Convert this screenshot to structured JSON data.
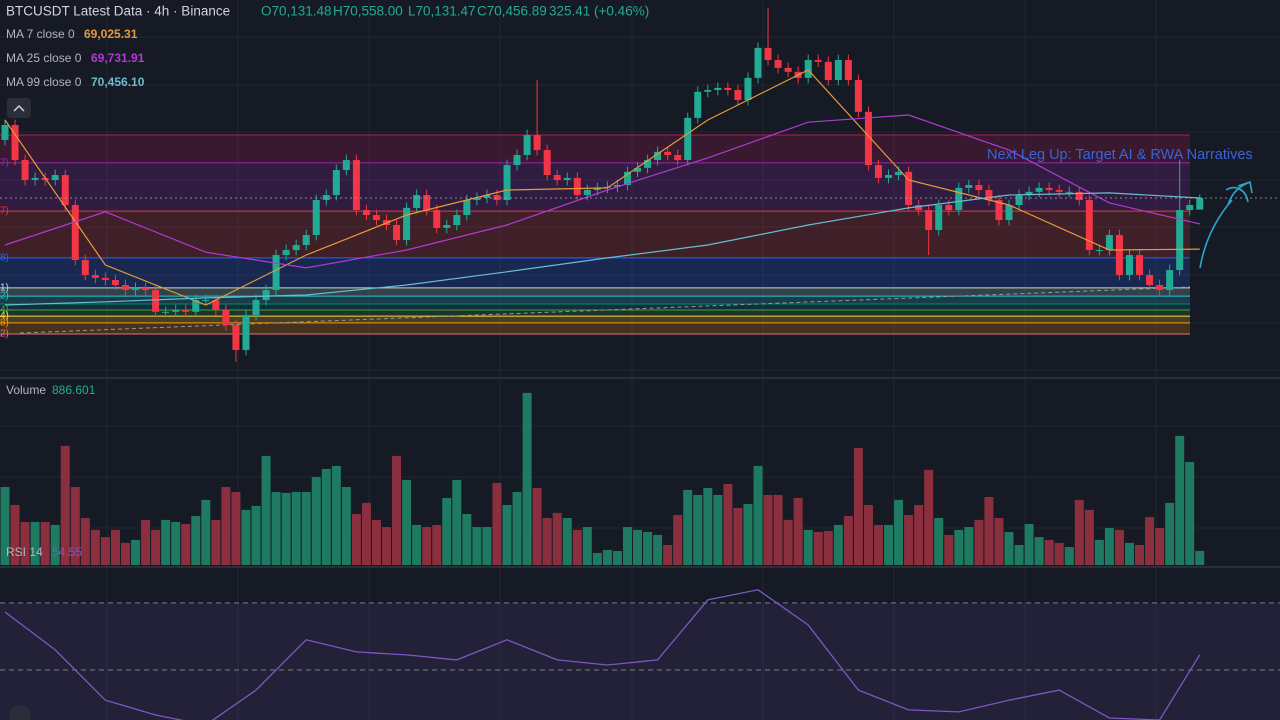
{
  "chart_data": {
    "type": "candlestick",
    "title": "BTCUSDT Latest Data · 4h · Binance",
    "ohlc": [
      "O70,131.48",
      "H70,558.00",
      "L70,131.47",
      "C70,456.89",
      "325.41 (+0.46%)"
    ],
    "up_color": "#22ab94",
    "down_color": "#f23645",
    "ylim": [
      65361,
      76001
    ],
    "open": [
      72080,
      72500,
      71520,
      70960,
      71020,
      70960,
      71100,
      70260,
      68720,
      68300,
      68220,
      68160,
      68020,
      67880,
      67940,
      67880,
      67270,
      67270,
      67320,
      67270,
      67600,
      67600,
      67320,
      66900,
      66200,
      67180,
      67600,
      67880,
      68860,
      69000,
      69140,
      69420,
      70400,
      70540,
      71240,
      71520,
      70120,
      69980,
      69840,
      69700,
      69280,
      70180,
      70540,
      70120,
      69620,
      69700,
      69980,
      70400,
      70460,
      70540,
      70400,
      71380,
      71660,
      72220,
      71800,
      71100,
      70960,
      71020,
      70540,
      70680,
      70740,
      70770,
      70820,
      71190,
      71300,
      71520,
      71750,
      71660,
      71520,
      72700,
      73430,
      73480,
      73540,
      73480,
      73200,
      73820,
      74660,
      74320,
      74100,
      73990,
      73820,
      74320,
      74270,
      73760,
      74320,
      73760,
      72870,
      71380,
      71020,
      71100,
      71190,
      70260,
      70120,
      69560,
      70260,
      70120,
      70740,
      70820,
      70680,
      70400,
      69840,
      70260,
      70540,
      70630,
      70740,
      70680,
      70630,
      70630,
      70400,
      69000,
      69000,
      69420,
      68300,
      68860,
      68300,
      68020,
      67880,
      68440,
      70120,
      70131.48
    ],
    "high": [
      72650,
      72650,
      71670,
      71170,
      71170,
      71250,
      71250,
      70410,
      68870,
      68450,
      68370,
      68310,
      68170,
      68090,
      68090,
      68030,
      67420,
      67470,
      67470,
      67750,
      67750,
      67750,
      67470,
      67050,
      67330,
      67750,
      68030,
      69010,
      69150,
      69290,
      69570,
      70550,
      70690,
      71390,
      71670,
      71670,
      70270,
      70130,
      69990,
      69850,
      70330,
      70690,
      70690,
      70270,
      69850,
      70130,
      70550,
      70610,
      70690,
      70690,
      71530,
      71810,
      72370,
      73760,
      71950,
      71250,
      71170,
      71170,
      70830,
      70890,
      70920,
      70970,
      71340,
      71450,
      71670,
      71900,
      71900,
      71810,
      72850,
      73580,
      73630,
      73690,
      73690,
      73630,
      73970,
      74810,
      75780,
      74470,
      74250,
      74140,
      74470,
      74470,
      74420,
      74470,
      74470,
      73910,
      73020,
      71530,
      71250,
      71340,
      71340,
      70410,
      70270,
      70410,
      70410,
      70890,
      70970,
      70970,
      70830,
      70550,
      70410,
      70690,
      70780,
      70890,
      70890,
      70830,
      70780,
      70780,
      70550,
      69150,
      69570,
      69570,
      69010,
      69010,
      68450,
      68170,
      68590,
      71520,
      70410,
      70558.0
    ],
    "low": [
      71930,
      71370,
      70810,
      70810,
      70810,
      70810,
      70110,
      68570,
      68150,
      68070,
      68010,
      67870,
      67730,
      67730,
      67730,
      67120,
      67120,
      67120,
      67120,
      67120,
      67450,
      67170,
      66750,
      65870,
      66050,
      67030,
      67450,
      67730,
      68710,
      68850,
      68990,
      69270,
      70250,
      70390,
      71090,
      69970,
      69830,
      69690,
      69550,
      69130,
      69130,
      70030,
      69970,
      69470,
      69470,
      69550,
      69830,
      70250,
      70310,
      70250,
      70250,
      71230,
      71510,
      71650,
      70950,
      70810,
      70810,
      70390,
      70390,
      70530,
      70590,
      70620,
      70670,
      71040,
      71150,
      71370,
      71510,
      71370,
      71370,
      72550,
      73280,
      73330,
      73330,
      73050,
      73050,
      73670,
      74170,
      73950,
      73840,
      73670,
      73670,
      74120,
      73610,
      73610,
      73610,
      72720,
      71230,
      70870,
      70870,
      70950,
      70110,
      69970,
      68860,
      69410,
      69970,
      69970,
      70590,
      70530,
      70250,
      69690,
      69690,
      70110,
      70390,
      70480,
      70530,
      70480,
      70480,
      70250,
      68850,
      68850,
      68850,
      68150,
      68150,
      68150,
      67870,
      67730,
      67730,
      68290,
      69970,
      70131.47
    ],
    "close": [
      72500,
      71520,
      70960,
      71020,
      70960,
      71100,
      70260,
      68720,
      68300,
      68220,
      68160,
      68020,
      67880,
      67940,
      67880,
      67270,
      67270,
      67320,
      67270,
      67600,
      67600,
      67320,
      66900,
      66200,
      67180,
      67600,
      67880,
      68860,
      69000,
      69140,
      69420,
      70400,
      70540,
      71240,
      71520,
      70120,
      69980,
      69840,
      69700,
      69280,
      70180,
      70540,
      70120,
      69620,
      69700,
      69980,
      70400,
      70460,
      70540,
      70400,
      71380,
      71660,
      72220,
      71800,
      71100,
      70960,
      71020,
      70540,
      70680,
      70740,
      70770,
      70820,
      71190,
      71300,
      71520,
      71750,
      71660,
      71520,
      72700,
      73430,
      73480,
      73540,
      73480,
      73200,
      73820,
      74660,
      74320,
      74100,
      73990,
      73820,
      74320,
      74270,
      73760,
      74320,
      73760,
      72870,
      71380,
      71020,
      71100,
      71190,
      70260,
      70120,
      69560,
      70260,
      70120,
      70740,
      70820,
      70680,
      70400,
      69840,
      70260,
      70540,
      70630,
      70740,
      70680,
      70630,
      70630,
      70400,
      69000,
      69000,
      69420,
      68300,
      68860,
      68300,
      68020,
      67880,
      68440,
      70120,
      70260,
      70456.89
    ],
    "ma_x": [
      0,
      10,
      20,
      30,
      40,
      50,
      60,
      70,
      80,
      90,
      100,
      110,
      119
    ],
    "moving_averages": [
      {
        "name": "MA 7 close 0",
        "color": "#e69b3a",
        "values": [
          72640,
          68580,
          67460,
          68860,
          69980,
          70680,
          70740,
          72640,
          74040,
          70960,
          70260,
          69000,
          69025.31
        ],
        "value_labels": [
          null,
          null,
          null,
          null,
          null,
          null,
          null,
          null,
          null,
          null,
          null,
          null,
          "69,025.31"
        ]
      },
      {
        "name": "MA 25 close 0",
        "color": "#b03bd0",
        "values": [
          69140,
          70070,
          68940,
          68500,
          69000,
          69700,
          70680,
          71580,
          72580,
          72780,
          71800,
          70320,
          69731.91
        ],
        "value_labels": [
          null,
          null,
          null,
          null,
          null,
          null,
          null,
          null,
          null,
          null,
          null,
          null,
          "69,731.91"
        ]
      },
      {
        "name": "MA 99 close 0",
        "color": "#6bbcd0",
        "values": [
          67460,
          67550,
          67660,
          67740,
          68020,
          68390,
          68780,
          69140,
          69700,
          70180,
          70540,
          70600,
          70456.1
        ],
        "value_labels": [
          null,
          null,
          null,
          null,
          null,
          null,
          null,
          null,
          null,
          null,
          null,
          null,
          "70,456.10"
        ]
      }
    ],
    "fib_levels": [
      {
        "value": 72220,
        "label": null,
        "color": "#c2185b"
      },
      {
        "value": 71440,
        "label": "7)",
        "color": "#9c27b0"
      },
      {
        "value": 70090,
        "label": "7)",
        "color": "#e53935"
      },
      {
        "value": 68780,
        "label": "8)",
        "color": "#2962ff"
      },
      {
        "value": 67940,
        "label": "1)",
        "color": "#b2dfdb"
      },
      {
        "value": 67710,
        "label": "2)",
        "color": "#26c6da"
      },
      {
        "value": 67490,
        "label": null,
        "color": "#00897b"
      },
      {
        "value": 67320,
        "label": "4)",
        "color": "#43a047"
      },
      {
        "value": 67150,
        "label": "4)",
        "color": "#fdd835"
      },
      {
        "value": 66960,
        "label": "8)",
        "color": "#ff9800"
      },
      {
        "value": 66650,
        "label": "2)",
        "color": "#e57373"
      }
    ],
    "annotation": "Next Leg Up: Target AI & RWA Narratives",
    "volume": {
      "label": "Volume",
      "ylim": [
        0,
        11650
      ],
      "values": [
        4910,
        3780,
        2710,
        2710,
        2710,
        2520,
        7500,
        4910,
        2960,
        2210,
        1760,
        2210,
        1390,
        1580,
        2840,
        2210,
        2840,
        2710,
        2580,
        3090,
        4100,
        2840,
        4910,
        4600,
        3470,
        3720,
        6870,
        4600,
        4540,
        4600,
        4600,
        5540,
        6050,
        6240,
        4910,
        3210,
        3910,
        2840,
        2390,
        6870,
        5360,
        2520,
        2390,
        2520,
        4220,
        5360,
        3210,
        2390,
        2390,
        5170,
        3780,
        4600,
        10840,
        4850,
        2960,
        3280,
        2960,
        2210,
        2390,
        760,
        950,
        880,
        2390,
        2210,
        2080,
        1890,
        1260,
        3150,
        4730,
        4410,
        4850,
        4410,
        5100,
        3590,
        3840,
        6240,
        4410,
        4410,
        2840,
        4220,
        2210,
        2080,
        2140,
        2520,
        3090,
        7370,
        3780,
        2520,
        2520,
        4100,
        3150,
        3780,
        5990,
        2960,
        1890,
        2210,
        2390,
        2840,
        4280,
        2960,
        2080,
        1260,
        2580,
        1760,
        1580,
        1390,
        1130,
        4100,
        3470,
        1580,
        2330,
        2210,
        1390,
        1260,
        3020,
        2330,
        3910,
        8130,
        6490,
        886.601
      ]
    },
    "rsi": {
      "label": "RSI 14",
      "color": "#7e57c2",
      "ylim": [
        35.1,
        80.4
      ],
      "levels": [
        70,
        50
      ],
      "x": [
        0,
        5,
        10,
        15,
        20,
        25,
        30,
        35,
        40,
        45,
        50,
        55,
        60,
        65,
        70,
        75,
        80,
        85,
        90,
        95,
        100,
        105,
        110,
        115,
        119
      ],
      "values": [
        67.3,
        56.0,
        41.0,
        36.6,
        33.6,
        44.0,
        59.0,
        55.4,
        54.5,
        53.0,
        59.0,
        53.0,
        51.5,
        53.0,
        70.9,
        73.9,
        63.4,
        44.0,
        38.1,
        37.5,
        41.0,
        44.0,
        35.7,
        35.1,
        54.55
      ]
    }
  }
}
